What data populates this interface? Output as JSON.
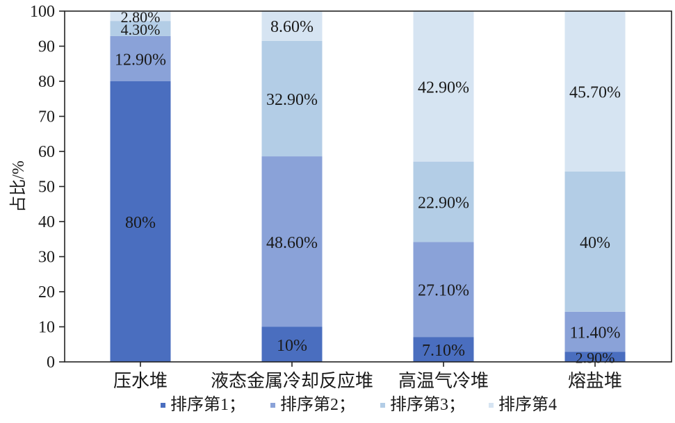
{
  "chart_data": {
    "type": "bar",
    "stacked": true,
    "ylabel": "占比/%",
    "ylim": [
      0,
      100
    ],
    "yticks": [
      0,
      10,
      20,
      30,
      40,
      50,
      60,
      70,
      80,
      90,
      100
    ],
    "categories": [
      "压水堆",
      "液态金属冷却反应堆",
      "高温气冷堆",
      "熔盐堆"
    ],
    "series": [
      {
        "name": "排序第1",
        "color": "#4a6ebf",
        "values": [
          80,
          10,
          7.1,
          2.9
        ],
        "labels": [
          "80%",
          "10%",
          "7.10%",
          "2.90%"
        ]
      },
      {
        "name": "排序第2",
        "color": "#8aa2d8",
        "values": [
          12.9,
          48.6,
          27.1,
          11.4
        ],
        "labels": [
          "12.90%",
          "48.60%",
          "27.10%",
          "11.40%"
        ]
      },
      {
        "name": "排序第3",
        "color": "#b3cde6",
        "values": [
          4.3,
          32.9,
          22.9,
          40
        ],
        "labels": [
          "4.30%",
          "32.90%",
          "22.90%",
          "40%"
        ]
      },
      {
        "name": "排序第4",
        "color": "#d6e4f2",
        "values": [
          2.8,
          8.6,
          42.9,
          45.7
        ],
        "labels": [
          "2.80%",
          "8.60%",
          "42.90%",
          "45.70%"
        ]
      }
    ],
    "legend": {
      "position": "bottom",
      "entries": [
        "排序第1；",
        "排序第2；",
        "排序第3；",
        "排序第4"
      ]
    },
    "grid": false
  }
}
